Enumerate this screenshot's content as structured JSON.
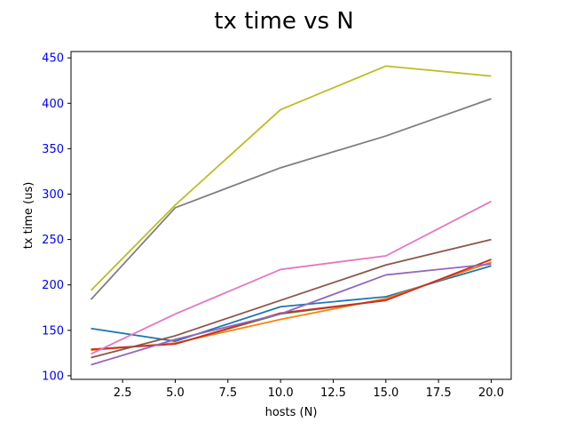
{
  "chart_data": {
    "type": "line",
    "title": "tx time vs N",
    "xlabel": "hosts (N)",
    "ylabel": "tx time (us)",
    "xlim": [
      0.05,
      20.95
    ],
    "ylim": [
      96.0,
      457.0
    ],
    "grid": false,
    "legend": "none",
    "x_ticks": [
      2.5,
      5.0,
      7.5,
      10.0,
      12.5,
      15.0,
      17.5,
      20.0
    ],
    "x_tick_labels": [
      "2.5",
      "5.0",
      "7.5",
      "10.0",
      "12.5",
      "15.0",
      "17.5",
      "20.0"
    ],
    "y_ticks": [
      100,
      150,
      200,
      250,
      300,
      350,
      400,
      450
    ],
    "y_tick_labels": [
      "100",
      "150",
      "200",
      "250",
      "300",
      "350",
      "400",
      "450"
    ],
    "y_tick_color": "#0000ff",
    "x": [
      1,
      5,
      10,
      15,
      20
    ],
    "series": [
      {
        "color": "#1f77b4",
        "values": [
          152,
          138,
          176,
          187,
          221
        ]
      },
      {
        "color": "#ff7f0e",
        "values": [
          128,
          136,
          162,
          185,
          225
        ]
      },
      {
        "color": "#2ca02c",
        "values": [
          129,
          135,
          168,
          183,
          228
        ]
      },
      {
        "color": "#d62728",
        "values": [
          129,
          135,
          169,
          183,
          228
        ]
      },
      {
        "color": "#9467bd",
        "values": [
          112,
          140,
          168,
          211,
          223
        ]
      },
      {
        "color": "#8c564b",
        "values": [
          120,
          144,
          183,
          222,
          250
        ]
      },
      {
        "color": "#e377c2",
        "values": [
          124,
          168,
          217,
          232,
          292
        ]
      },
      {
        "color": "#7f7f7f",
        "values": [
          184,
          285,
          329,
          364,
          405
        ]
      },
      {
        "color": "#bcbd22",
        "values": [
          194,
          288,
          393,
          441,
          430
        ]
      }
    ]
  }
}
